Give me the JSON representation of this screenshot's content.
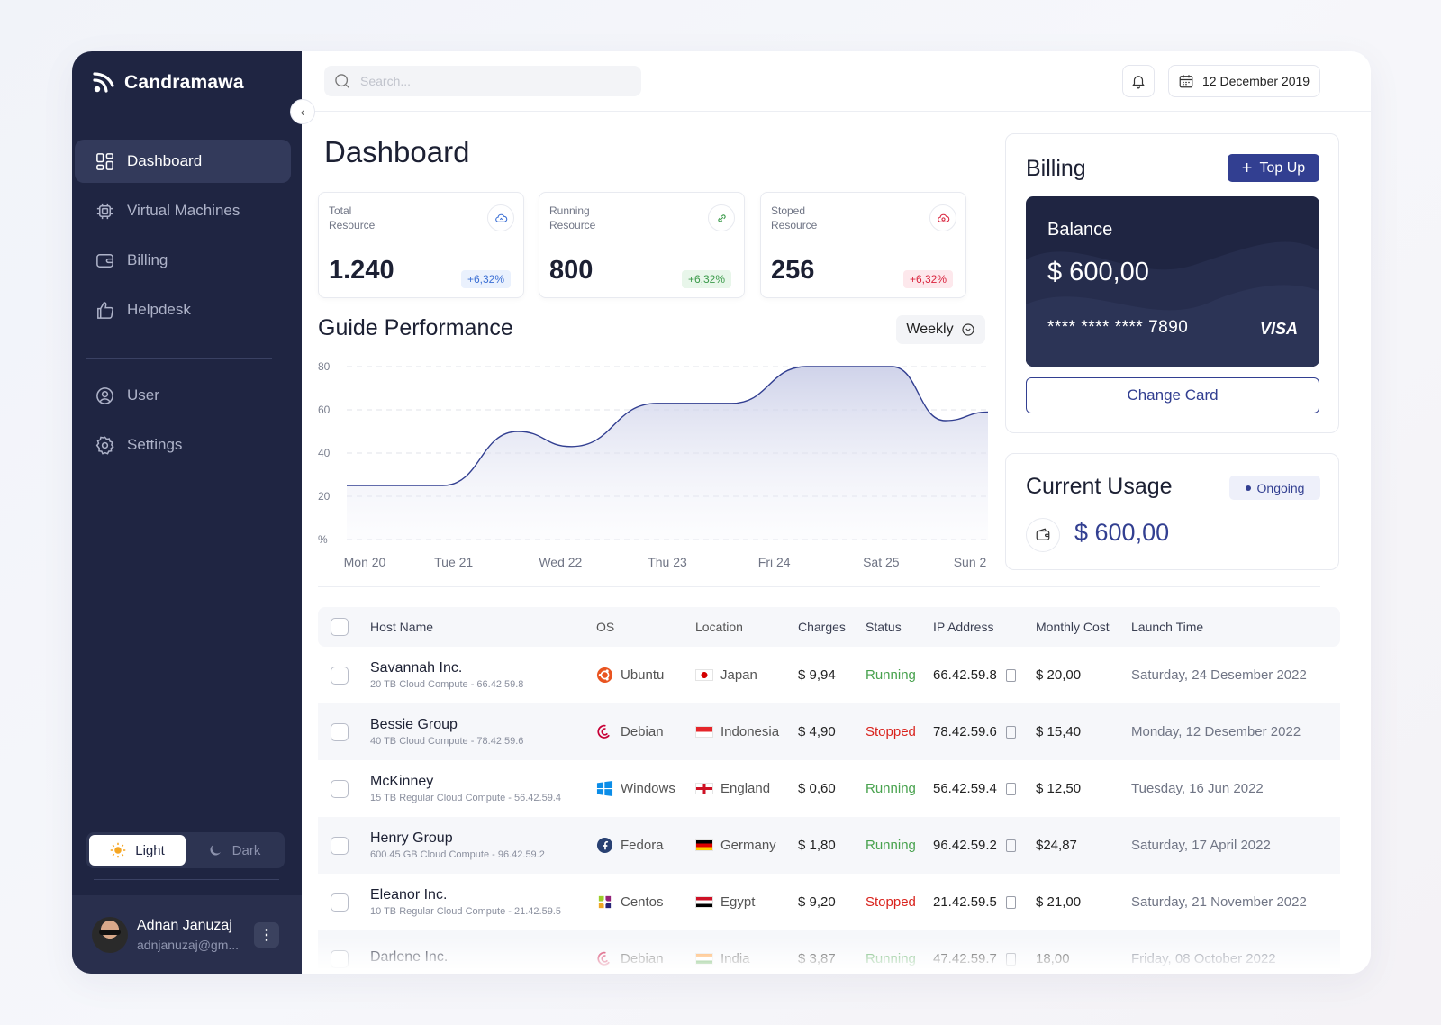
{
  "brand": {
    "name": "Candramawa"
  },
  "sidebar": {
    "items": [
      {
        "label": "Dashboard",
        "icon": "dashboard-icon"
      },
      {
        "label": "Virtual Machines",
        "icon": "chip-icon"
      },
      {
        "label": "Billing",
        "icon": "wallet-icon"
      },
      {
        "label": "Helpdesk",
        "icon": "thumbs-up-icon"
      },
      {
        "label": "User",
        "icon": "user-icon"
      },
      {
        "label": "Settings",
        "icon": "gear-icon"
      }
    ],
    "theme": {
      "light": "Light",
      "dark": "Dark",
      "selected": "Light"
    },
    "user": {
      "name": "Adnan Januzaj",
      "email": "adnjanuzaj@gm..."
    }
  },
  "header": {
    "search_placeholder": "Search...",
    "date": "12 December 2019"
  },
  "page": {
    "title": "Dashboard"
  },
  "stats": [
    {
      "label": "Total Resource",
      "value": "1.240",
      "change": "+6,32%",
      "color": "#3b6fd4",
      "bg": "#eaf1fd"
    },
    {
      "label": "Running Resource",
      "value": "800",
      "change": "+6,32%",
      "color": "#3b9a4a",
      "bg": "#e8f6ea"
    },
    {
      "label": "Stoped Resource",
      "value": "256",
      "change": "+6,32%",
      "color": "#d9233d",
      "bg": "#fde8ec"
    }
  ],
  "performance": {
    "title": "Guide Performance",
    "period": "Weekly"
  },
  "chart_data": {
    "type": "area",
    "x": [
      "Mon 20",
      "Tue 21",
      "Wed 22",
      "Thu 23",
      "Fri 24",
      "Sat 25",
      "Sun 2"
    ],
    "y_ticks": [
      "80",
      "60",
      "40",
      "20",
      "%"
    ],
    "ylim": [
      0,
      80
    ],
    "grid": true,
    "points": [
      [
        0,
        25
      ],
      [
        0.9,
        25
      ],
      [
        1.6,
        50
      ],
      [
        2.1,
        43
      ],
      [
        2.9,
        63
      ],
      [
        3.6,
        63
      ],
      [
        4.3,
        80
      ],
      [
        5.1,
        80
      ],
      [
        5.6,
        55
      ],
      [
        6,
        59
      ]
    ],
    "color": "#323f91"
  },
  "billing": {
    "title": "Billing",
    "topup": "Top Up",
    "card_label": "Balance",
    "balance": "$ 600,00",
    "card_number": "**** **** **** 7890",
    "card_brand": "VISA",
    "change_card": "Change Card"
  },
  "usage": {
    "title": "Current Usage",
    "status": "Ongoing",
    "amount": "$ 600,00"
  },
  "table": {
    "headers": [
      "Host Name",
      "OS",
      "Location",
      "Charges",
      "Status",
      "IP Address",
      "Monthly Cost",
      "Launch Time"
    ],
    "rows": [
      {
        "host": "Savannah Inc.",
        "sub": "20 TB Cloud Compute - 66.42.59.8",
        "os": "Ubuntu",
        "loc": "Japan",
        "charges": "$ 9,94",
        "status": "Running",
        "ip": "66.42.59.8",
        "cost": "$ 20,00",
        "launch": "Saturday, 24 Desember 2022"
      },
      {
        "host": "Bessie Group",
        "sub": "40 TB Cloud Compute - 78.42.59.6",
        "os": "Debian",
        "loc": "Indonesia",
        "charges": "$ 4,90",
        "status": "Stopped",
        "ip": "78.42.59.6",
        "cost": "$ 15,40",
        "launch": "Monday, 12 Desember 2022"
      },
      {
        "host": "McKinney",
        "sub": "15 TB Regular Cloud Compute - 56.42.59.4",
        "os": "Windows",
        "loc": "England",
        "charges": "$ 0,60",
        "status": "Running",
        "ip": "56.42.59.4",
        "cost": "$ 12,50",
        "launch": "Tuesday, 16 Jun 2022"
      },
      {
        "host": "Henry Group",
        "sub": "600.45 GB Cloud Compute - 96.42.59.2",
        "os": "Fedora",
        "loc": "Germany",
        "charges": "$ 1,80",
        "status": "Running",
        "ip": "96.42.59.2",
        "cost": "$24,87",
        "launch": "Saturday, 17 April 2022"
      },
      {
        "host": "Eleanor Inc.",
        "sub": "10 TB Regular Cloud Compute - 21.42.59.5",
        "os": "Centos",
        "loc": "Egypt",
        "charges": "$ 9,20",
        "status": "Stopped",
        "ip": "21.42.59.5",
        "cost": "$ 21,00",
        "launch": "Saturday, 21 November 2022"
      },
      {
        "host": "Darlene Inc.",
        "sub": "",
        "os": "Debian",
        "loc": "India",
        "charges": "$ 3,87",
        "status": "Running",
        "ip": "47.42.59.7",
        "cost": "18,00",
        "launch": "Friday, 08 October 2022"
      }
    ]
  }
}
